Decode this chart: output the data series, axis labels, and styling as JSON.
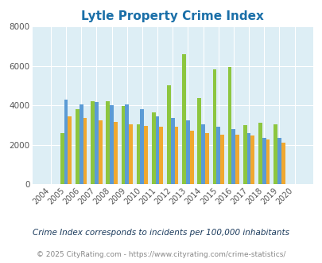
{
  "title": "Lytle Property Crime Index",
  "years": [
    "2004",
    "2005",
    "2006",
    "2007",
    "2008",
    "2009",
    "2010",
    "2011",
    "2012",
    "2013",
    "2014",
    "2015",
    "2016",
    "2017",
    "2018",
    "2019",
    "2020"
  ],
  "lytle": [
    0,
    2600,
    3800,
    4200,
    4200,
    3950,
    3050,
    3650,
    5000,
    6600,
    4350,
    5800,
    5950,
    3000,
    3100,
    3050,
    0
  ],
  "texas": [
    0,
    4300,
    4050,
    4150,
    4000,
    4050,
    3800,
    3450,
    3350,
    3250,
    3050,
    2900,
    2800,
    2600,
    2350,
    2350,
    0
  ],
  "national": [
    0,
    3450,
    3350,
    3250,
    3150,
    3050,
    2950,
    2900,
    2900,
    2700,
    2600,
    2500,
    2500,
    2450,
    2250,
    2100,
    0
  ],
  "lytle_color": "#8dc63f",
  "texas_color": "#5b9bd5",
  "national_color": "#f0a830",
  "bg_color": "#ddeef5",
  "fig_bg": "#ffffff",
  "ylim": [
    0,
    8000
  ],
  "yticks": [
    0,
    2000,
    4000,
    6000,
    8000
  ],
  "subtitle": "Crime Index corresponds to incidents per 100,000 inhabitants",
  "footer": "© 2025 CityRating.com - https://www.cityrating.com/crime-statistics/",
  "bar_width": 0.25,
  "title_color": "#1a6fa8",
  "title_fontsize": 11,
  "subtitle_color": "#1a3a5c",
  "footer_color": "#888888",
  "subtitle_fontsize": 7.5,
  "footer_fontsize": 6.5,
  "tick_fontsize": 7,
  "ytick_fontsize": 7.5,
  "legend_fontsize": 9
}
